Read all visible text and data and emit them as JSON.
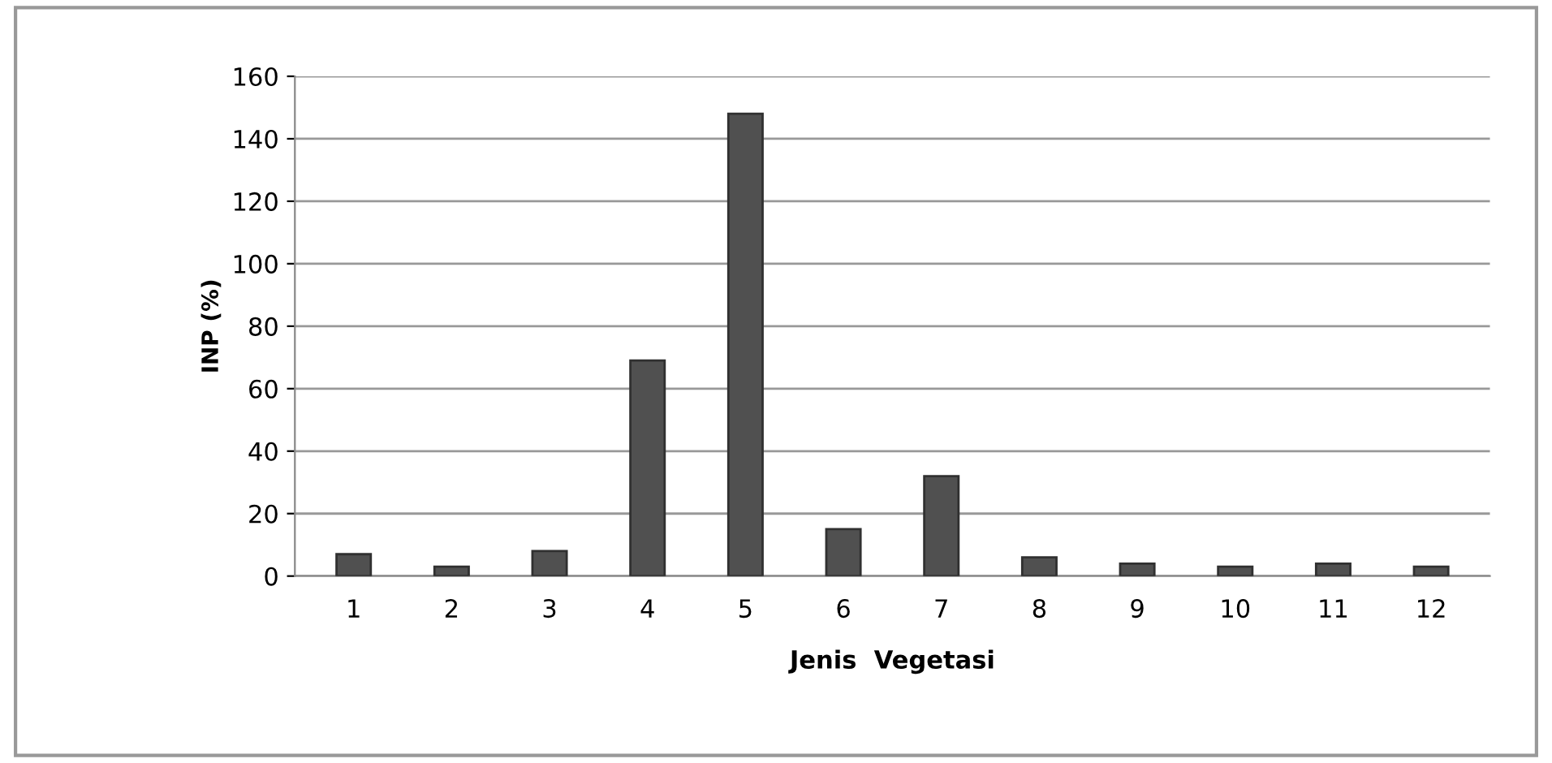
{
  "chart_data": {
    "type": "bar",
    "xlabel": "Jenis  Vegetasi",
    "ylabel": "INP (%)",
    "categories": [
      "1",
      "2",
      "3",
      "4",
      "5",
      "6",
      "7",
      "8",
      "9",
      "10",
      "11",
      "12"
    ],
    "values": [
      7,
      3,
      8,
      69,
      148,
      15,
      32,
      6,
      4,
      3,
      4,
      3
    ],
    "color": "#505050",
    "ylim": [
      0,
      160
    ],
    "yticks": [
      0,
      20,
      40,
      60,
      80,
      100,
      120,
      140,
      160
    ],
    "grid": "y"
  }
}
